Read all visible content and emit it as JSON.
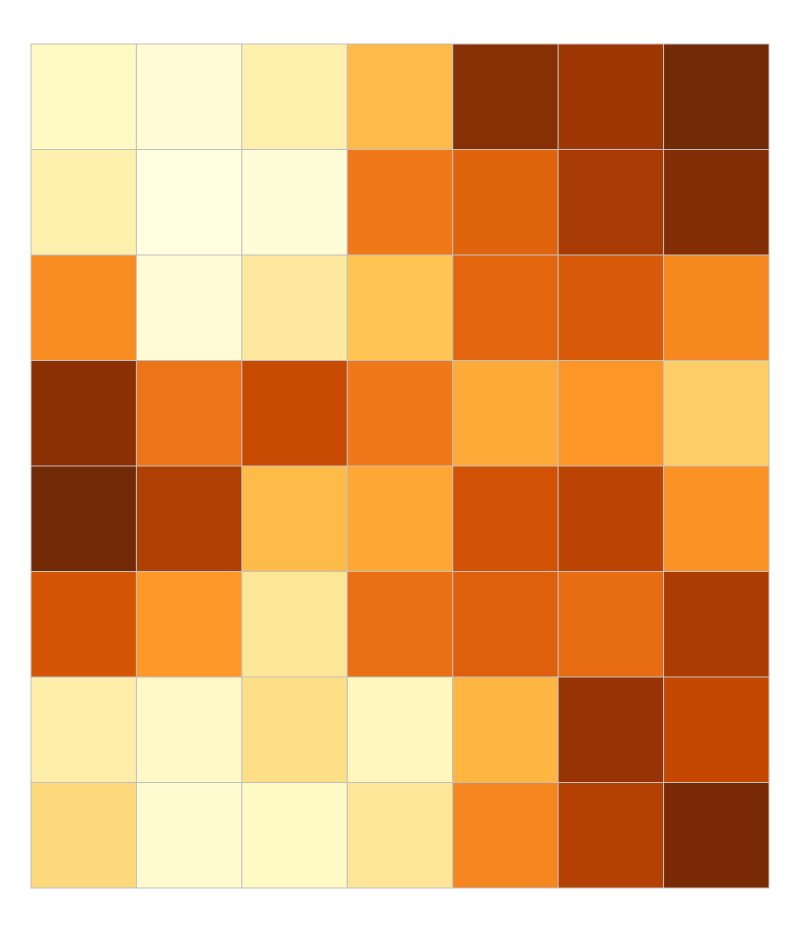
{
  "chart_data": {
    "type": "heatmap",
    "rows": 8,
    "cols": 7,
    "colormap": "YlOrBr",
    "value_range": [
      0,
      1
    ],
    "grid_color": "#c0c0c0",
    "grid": true,
    "values": [
      [
        0.1,
        0.05,
        0.17,
        0.4,
        0.92,
        0.86,
        0.97
      ],
      [
        0.17,
        0.02,
        0.04,
        0.6,
        0.67,
        0.84,
        0.93
      ],
      [
        0.54,
        0.05,
        0.21,
        0.37,
        0.66,
        0.7,
        0.55
      ],
      [
        0.91,
        0.61,
        0.76,
        0.6,
        0.45,
        0.51,
        0.33
      ],
      [
        0.97,
        0.82,
        0.4,
        0.46,
        0.73,
        0.79,
        0.52
      ],
      [
        0.72,
        0.5,
        0.23,
        0.63,
        0.68,
        0.64,
        0.83
      ],
      [
        0.18,
        0.09,
        0.27,
        0.12,
        0.42,
        0.88,
        0.77
      ],
      [
        0.29,
        0.06,
        0.1,
        0.23,
        0.56,
        0.81,
        0.95
      ]
    ]
  }
}
